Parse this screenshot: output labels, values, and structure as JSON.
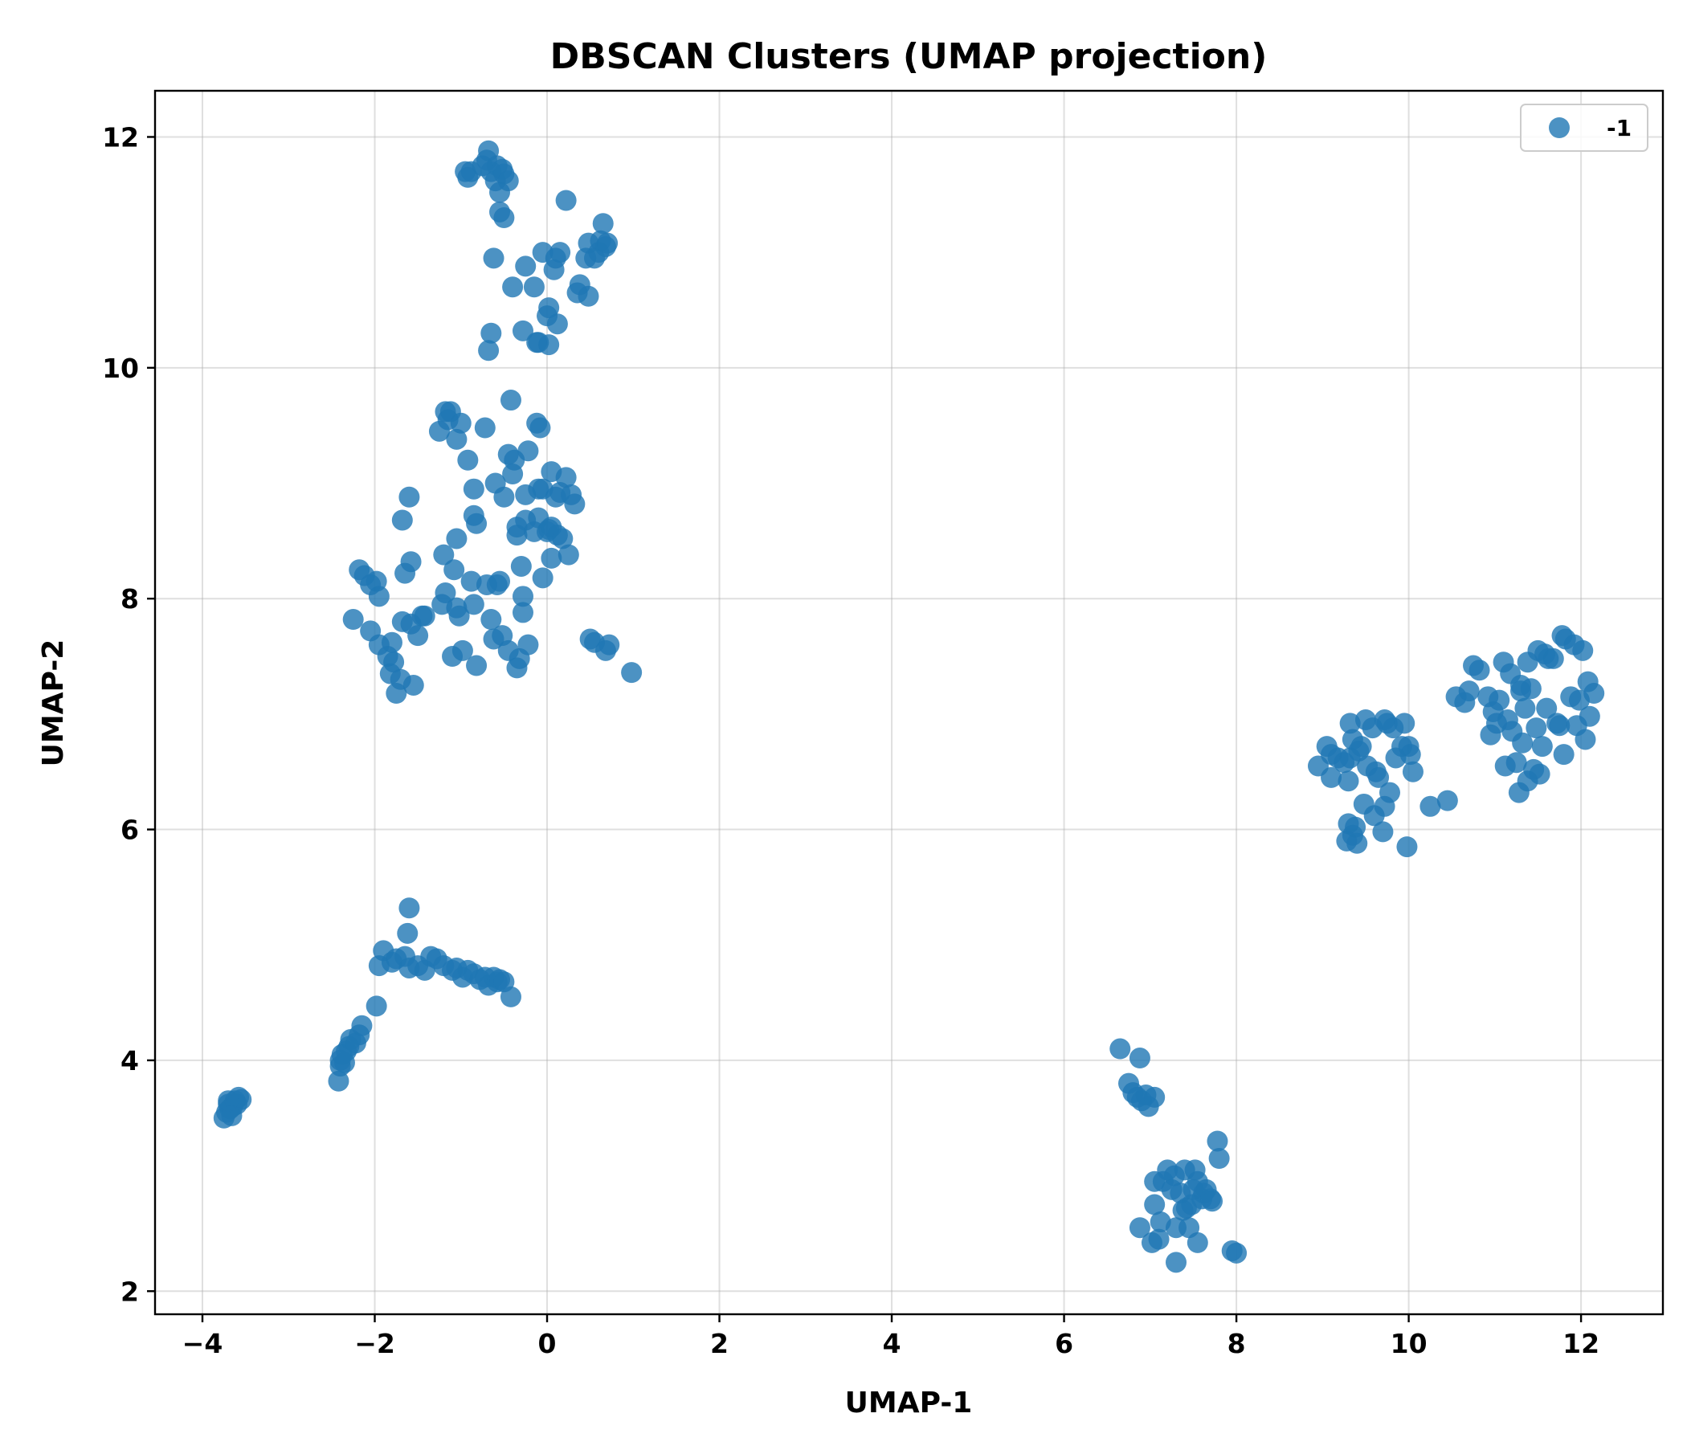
{
  "chart_data": {
    "type": "scatter",
    "title": "DBSCAN Clusters (UMAP projection)",
    "xlabel": "UMAP-1",
    "ylabel": "UMAP-2",
    "xlim": [
      -4.55,
      12.95
    ],
    "ylim": [
      1.8,
      12.4
    ],
    "xticks": [
      -4,
      -2,
      0,
      2,
      4,
      6,
      8,
      10,
      12
    ],
    "xtick_labels": [
      "−4",
      "−2",
      "0",
      "2",
      "4",
      "6",
      "8",
      "10",
      "12"
    ],
    "yticks": [
      2,
      4,
      6,
      8,
      10,
      12
    ],
    "ytick_labels": [
      "2",
      "4",
      "6",
      "8",
      "10",
      "12"
    ],
    "grid": true,
    "legend": {
      "position": "top-right",
      "entries": [
        "-1"
      ]
    },
    "series": [
      {
        "name": "-1",
        "color": "#1f77b4",
        "points": [
          [
            -3.75,
            3.5
          ],
          [
            -3.72,
            3.55
          ],
          [
            -3.7,
            3.62
          ],
          [
            -3.68,
            3.58
          ],
          [
            -3.65,
            3.6
          ],
          [
            -3.62,
            3.65
          ],
          [
            -3.6,
            3.62
          ],
          [
            -3.58,
            3.68
          ],
          [
            -3.55,
            3.66
          ],
          [
            -3.7,
            3.65
          ],
          [
            -3.66,
            3.52
          ],
          [
            -2.42,
            3.82
          ],
          [
            -2.4,
            3.95
          ],
          [
            -2.38,
            4.05
          ],
          [
            -2.35,
            3.98
          ],
          [
            -2.33,
            4.08
          ],
          [
            -2.3,
            4.12
          ],
          [
            -2.28,
            4.18
          ],
          [
            -2.22,
            4.15
          ],
          [
            -2.18,
            4.22
          ],
          [
            -2.15,
            4.3
          ],
          [
            -2.4,
            4.0
          ],
          [
            -1.98,
            4.47
          ],
          [
            -1.95,
            4.82
          ],
          [
            -1.9,
            4.95
          ],
          [
            -1.8,
            4.85
          ],
          [
            -1.75,
            4.88
          ],
          [
            -1.65,
            4.9
          ],
          [
            -1.62,
            5.1
          ],
          [
            -1.6,
            5.32
          ],
          [
            -1.6,
            4.8
          ],
          [
            -1.5,
            4.82
          ],
          [
            -1.42,
            4.78
          ],
          [
            -1.35,
            4.9
          ],
          [
            -1.28,
            4.88
          ],
          [
            -1.2,
            4.82
          ],
          [
            -1.1,
            4.78
          ],
          [
            -1.05,
            4.8
          ],
          [
            -0.98,
            4.72
          ],
          [
            -0.92,
            4.78
          ],
          [
            -0.85,
            4.75
          ],
          [
            -0.78,
            4.7
          ],
          [
            -0.72,
            4.72
          ],
          [
            -0.68,
            4.65
          ],
          [
            -0.62,
            4.72
          ],
          [
            -0.58,
            4.68
          ],
          [
            -0.55,
            4.7
          ],
          [
            -0.5,
            4.68
          ],
          [
            -0.42,
            4.55
          ],
          [
            -2.25,
            7.82
          ],
          [
            -2.18,
            8.25
          ],
          [
            -2.12,
            8.2
          ],
          [
            -2.05,
            7.72
          ],
          [
            -2.05,
            8.12
          ],
          [
            -1.98,
            8.15
          ],
          [
            -1.95,
            8.02
          ],
          [
            -1.95,
            7.6
          ],
          [
            -1.85,
            7.5
          ],
          [
            -1.82,
            7.35
          ],
          [
            -1.8,
            7.62
          ],
          [
            -1.78,
            7.45
          ],
          [
            -1.75,
            7.18
          ],
          [
            -1.7,
            7.3
          ],
          [
            -1.68,
            7.8
          ],
          [
            -1.68,
            8.68
          ],
          [
            -1.65,
            8.22
          ],
          [
            -1.6,
            8.88
          ],
          [
            -1.58,
            7.78
          ],
          [
            -1.58,
            8.32
          ],
          [
            -1.55,
            7.25
          ],
          [
            -1.5,
            7.68
          ],
          [
            -1.45,
            7.85
          ],
          [
            -1.42,
            7.85
          ],
          [
            -1.25,
            9.45
          ],
          [
            -1.22,
            7.95
          ],
          [
            -1.2,
            8.38
          ],
          [
            -1.18,
            8.05
          ],
          [
            -1.18,
            9.62
          ],
          [
            -1.15,
            9.55
          ],
          [
            -1.12,
            9.62
          ],
          [
            -1.1,
            7.5
          ],
          [
            -1.08,
            8.25
          ],
          [
            -1.05,
            8.52
          ],
          [
            -1.05,
            9.38
          ],
          [
            -1.05,
            7.92
          ],
          [
            -1.02,
            7.85
          ],
          [
            -1.0,
            9.52
          ],
          [
            -0.98,
            7.55
          ],
          [
            -0.92,
            9.2
          ],
          [
            -0.88,
            8.15
          ],
          [
            -0.85,
            7.95
          ],
          [
            -0.85,
            8.72
          ],
          [
            -0.85,
            8.95
          ],
          [
            -0.82,
            7.42
          ],
          [
            -0.82,
            8.65
          ],
          [
            -0.72,
            9.48
          ],
          [
            -0.7,
            8.12
          ],
          [
            -0.65,
            7.82
          ],
          [
            -0.62,
            7.65
          ],
          [
            -0.6,
            9.0
          ],
          [
            -0.58,
            8.12
          ],
          [
            -0.55,
            8.15
          ],
          [
            -0.52,
            7.68
          ],
          [
            -0.5,
            8.88
          ],
          [
            -0.45,
            7.55
          ],
          [
            -0.45,
            9.25
          ],
          [
            -0.42,
            9.72
          ],
          [
            -0.4,
            9.08
          ],
          [
            -0.38,
            9.2
          ],
          [
            -0.35,
            8.55
          ],
          [
            -0.35,
            7.4
          ],
          [
            -0.35,
            8.62
          ],
          [
            -0.32,
            7.48
          ],
          [
            -0.3,
            8.28
          ],
          [
            -0.28,
            7.88
          ],
          [
            -0.28,
            8.02
          ],
          [
            -0.25,
            8.68
          ],
          [
            -0.25,
            8.9
          ],
          [
            -0.22,
            9.28
          ],
          [
            -0.22,
            7.6
          ],
          [
            -0.15,
            8.58
          ],
          [
            -0.12,
            9.52
          ],
          [
            -0.1,
            8.7
          ],
          [
            -0.1,
            8.95
          ],
          [
            -0.08,
            9.48
          ],
          [
            -0.05,
            8.18
          ],
          [
            -0.05,
            8.95
          ],
          [
            0.0,
            8.58
          ],
          [
            0.02,
            8.6
          ],
          [
            0.05,
            8.62
          ],
          [
            0.05,
            8.35
          ],
          [
            0.05,
            9.1
          ],
          [
            0.1,
            8.88
          ],
          [
            0.12,
            8.55
          ],
          [
            0.15,
            8.92
          ],
          [
            0.18,
            8.52
          ],
          [
            0.22,
            9.05
          ],
          [
            0.25,
            8.38
          ],
          [
            0.28,
            8.9
          ],
          [
            0.32,
            8.82
          ],
          [
            0.5,
            7.65
          ],
          [
            0.55,
            7.62
          ],
          [
            0.68,
            7.55
          ],
          [
            0.72,
            7.6
          ],
          [
            0.98,
            7.36
          ],
          [
            -0.68,
            10.15
          ],
          [
            -0.65,
            10.3
          ],
          [
            -0.62,
            10.95
          ],
          [
            -0.4,
            10.7
          ],
          [
            -0.28,
            10.32
          ],
          [
            -0.25,
            10.88
          ],
          [
            -0.15,
            10.7
          ],
          [
            -0.12,
            10.22
          ],
          [
            -0.1,
            10.22
          ],
          [
            -0.05,
            11.0
          ],
          [
            0.0,
            10.45
          ],
          [
            0.02,
            10.2
          ],
          [
            0.02,
            10.52
          ],
          [
            0.08,
            10.85
          ],
          [
            0.1,
            10.95
          ],
          [
            0.12,
            10.38
          ],
          [
            0.15,
            11.0
          ],
          [
            0.35,
            10.65
          ],
          [
            0.38,
            10.72
          ],
          [
            0.45,
            10.95
          ],
          [
            0.48,
            11.08
          ],
          [
            0.48,
            10.62
          ],
          [
            0.55,
            10.95
          ],
          [
            0.6,
            11.0
          ],
          [
            0.62,
            11.1
          ],
          [
            0.65,
            11.25
          ],
          [
            0.68,
            11.05
          ],
          [
            0.7,
            11.08
          ],
          [
            0.22,
            11.45
          ],
          [
            -0.95,
            11.7
          ],
          [
            -0.92,
            11.65
          ],
          [
            -0.88,
            11.7
          ],
          [
            -0.75,
            11.75
          ],
          [
            -0.7,
            11.8
          ],
          [
            -0.68,
            11.88
          ],
          [
            -0.65,
            11.7
          ],
          [
            -0.6,
            11.62
          ],
          [
            -0.58,
            11.75
          ],
          [
            -0.55,
            11.52
          ],
          [
            -0.52,
            11.72
          ],
          [
            -0.5,
            11.68
          ],
          [
            -0.45,
            11.62
          ],
          [
            -0.55,
            11.35
          ],
          [
            -0.5,
            11.3
          ],
          [
            6.65,
            4.1
          ],
          [
            6.75,
            3.8
          ],
          [
            6.8,
            3.72
          ],
          [
            6.85,
            3.68
          ],
          [
            6.88,
            4.02
          ],
          [
            6.9,
            3.65
          ],
          [
            6.95,
            3.7
          ],
          [
            6.98,
            3.6
          ],
          [
            7.05,
            3.68
          ],
          [
            6.88,
            2.55
          ],
          [
            7.02,
            2.42
          ],
          [
            7.05,
            2.95
          ],
          [
            7.05,
            2.75
          ],
          [
            7.1,
            2.45
          ],
          [
            7.12,
            2.6
          ],
          [
            7.15,
            2.95
          ],
          [
            7.2,
            3.05
          ],
          [
            7.25,
            2.88
          ],
          [
            7.28,
            3.0
          ],
          [
            7.3,
            2.55
          ],
          [
            7.3,
            2.25
          ],
          [
            7.35,
            2.85
          ],
          [
            7.38,
            2.7
          ],
          [
            7.4,
            3.05
          ],
          [
            7.42,
            2.72
          ],
          [
            7.45,
            2.55
          ],
          [
            7.48,
            2.75
          ],
          [
            7.5,
            2.88
          ],
          [
            7.52,
            3.05
          ],
          [
            7.55,
            2.42
          ],
          [
            7.55,
            2.95
          ],
          [
            7.6,
            2.8
          ],
          [
            7.62,
            2.85
          ],
          [
            7.65,
            2.88
          ],
          [
            7.7,
            2.8
          ],
          [
            7.72,
            2.78
          ],
          [
            7.78,
            3.3
          ],
          [
            7.8,
            3.15
          ],
          [
            7.95,
            2.35
          ],
          [
            8.0,
            2.33
          ],
          [
            8.95,
            6.55
          ],
          [
            9.05,
            6.72
          ],
          [
            9.1,
            6.65
          ],
          [
            9.1,
            6.45
          ],
          [
            9.18,
            6.62
          ],
          [
            9.25,
            6.58
          ],
          [
            9.28,
            5.9
          ],
          [
            9.3,
            6.05
          ],
          [
            9.3,
            6.42
          ],
          [
            9.32,
            6.92
          ],
          [
            9.32,
            6.62
          ],
          [
            9.35,
            5.95
          ],
          [
            9.35,
            6.78
          ],
          [
            9.38,
            6.02
          ],
          [
            9.4,
            5.88
          ],
          [
            9.42,
            6.68
          ],
          [
            9.45,
            6.72
          ],
          [
            9.48,
            6.22
          ],
          [
            9.5,
            6.95
          ],
          [
            9.52,
            6.55
          ],
          [
            9.58,
            6.88
          ],
          [
            9.6,
            6.12
          ],
          [
            9.62,
            6.5
          ],
          [
            9.65,
            6.45
          ],
          [
            9.7,
            5.98
          ],
          [
            9.72,
            6.95
          ],
          [
            9.72,
            6.2
          ],
          [
            9.75,
            6.92
          ],
          [
            9.78,
            6.32
          ],
          [
            9.82,
            6.88
          ],
          [
            9.85,
            6.62
          ],
          [
            9.92,
            6.72
          ],
          [
            9.95,
            6.92
          ],
          [
            9.98,
            5.85
          ],
          [
            10.0,
            6.72
          ],
          [
            10.02,
            6.65
          ],
          [
            10.05,
            6.5
          ],
          [
            10.25,
            6.2
          ],
          [
            10.45,
            6.25
          ],
          [
            10.55,
            7.15
          ],
          [
            10.65,
            7.1
          ],
          [
            10.7,
            7.2
          ],
          [
            10.75,
            7.42
          ],
          [
            10.82,
            7.38
          ],
          [
            10.92,
            7.15
          ],
          [
            10.95,
            6.82
          ],
          [
            10.98,
            7.02
          ],
          [
            11.02,
            6.92
          ],
          [
            11.05,
            7.12
          ],
          [
            11.1,
            7.45
          ],
          [
            11.12,
            6.55
          ],
          [
            11.15,
            6.95
          ],
          [
            11.18,
            7.35
          ],
          [
            11.2,
            6.85
          ],
          [
            11.25,
            6.58
          ],
          [
            11.28,
            6.32
          ],
          [
            11.3,
            7.2
          ],
          [
            11.3,
            7.25
          ],
          [
            11.32,
            6.75
          ],
          [
            11.35,
            7.05
          ],
          [
            11.38,
            7.45
          ],
          [
            11.38,
            6.42
          ],
          [
            11.42,
            7.22
          ],
          [
            11.45,
            6.52
          ],
          [
            11.48,
            6.88
          ],
          [
            11.5,
            7.55
          ],
          [
            11.52,
            6.48
          ],
          [
            11.55,
            6.72
          ],
          [
            11.58,
            7.52
          ],
          [
            11.6,
            7.05
          ],
          [
            11.62,
            7.48
          ],
          [
            11.68,
            7.48
          ],
          [
            11.72,
            6.92
          ],
          [
            11.75,
            6.9
          ],
          [
            11.78,
            7.68
          ],
          [
            11.8,
            6.65
          ],
          [
            11.82,
            7.65
          ],
          [
            11.88,
            7.15
          ],
          [
            11.92,
            7.6
          ],
          [
            11.95,
            6.9
          ],
          [
            11.98,
            7.12
          ],
          [
            12.02,
            7.55
          ],
          [
            12.05,
            6.78
          ],
          [
            12.08,
            7.28
          ],
          [
            12.1,
            6.98
          ],
          [
            12.15,
            7.18
          ]
        ]
      }
    ]
  }
}
